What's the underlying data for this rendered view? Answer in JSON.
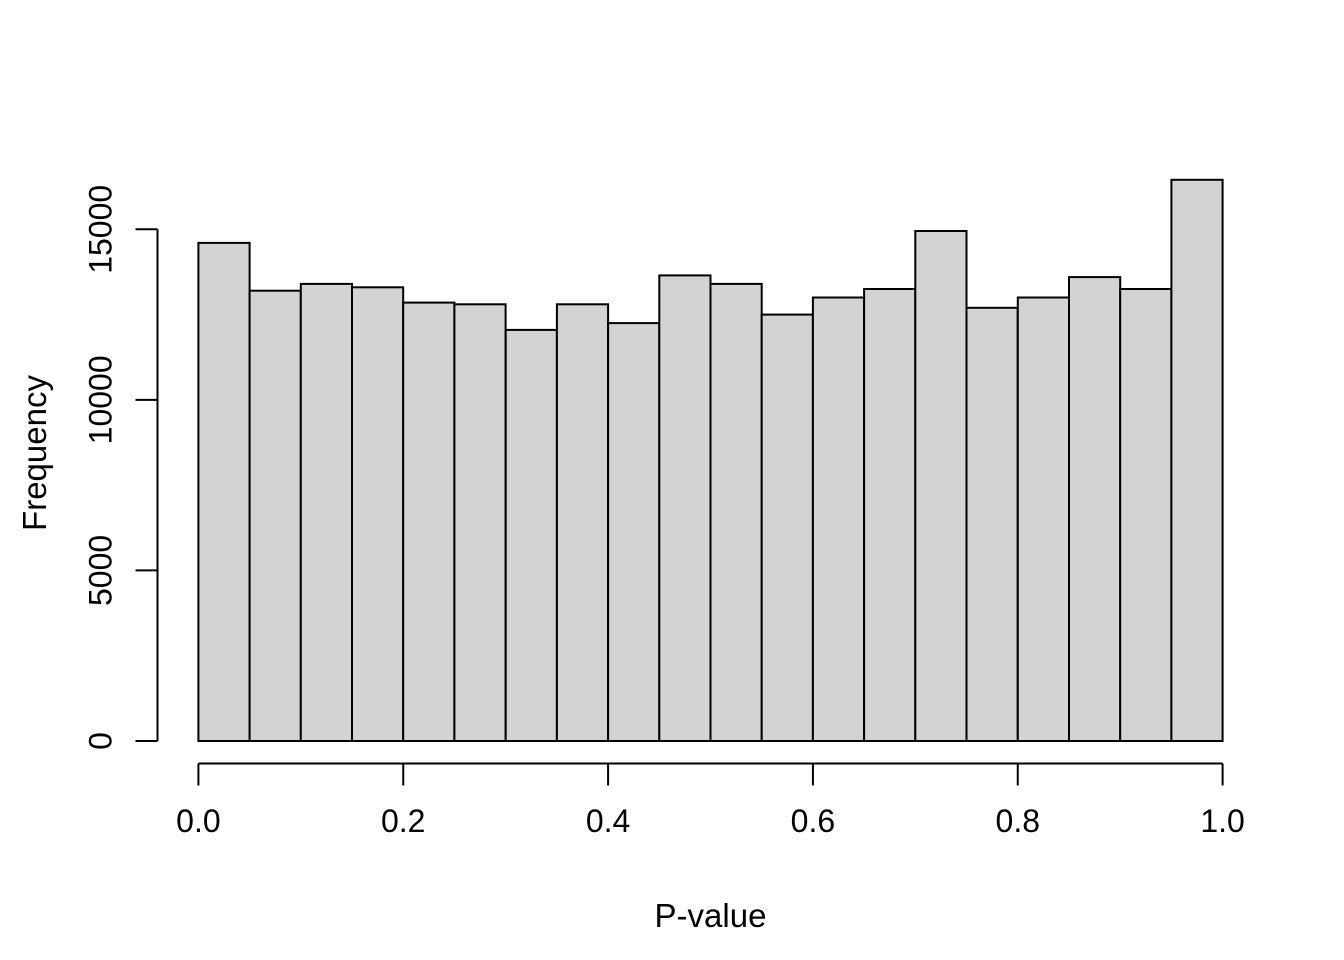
{
  "figure": {
    "background_color": "#ffffff",
    "bar_fill_color": "#d3d3d3",
    "bar_stroke_color": "#000000",
    "axis_color": "#000000",
    "text_color": "#000000"
  },
  "chart_data": {
    "type": "bar",
    "subtype": "histogram",
    "title": "",
    "xlabel": "P-value",
    "ylabel": "Frequency",
    "bins": {
      "start": 0.0,
      "end": 1.0,
      "width": 0.05,
      "count": 20
    },
    "bin_edges": [
      0.0,
      0.05,
      0.1,
      0.15,
      0.2,
      0.25,
      0.3,
      0.35,
      0.4,
      0.45,
      0.5,
      0.55,
      0.6,
      0.65,
      0.7,
      0.75,
      0.8,
      0.85,
      0.9,
      0.95,
      1.0
    ],
    "values": [
      14600,
      13200,
      13400,
      13300,
      12850,
      12800,
      12050,
      12800,
      12250,
      13650,
      13400,
      12500,
      13000,
      13250,
      14950,
      12700,
      13000,
      13600,
      13250,
      16450
    ],
    "x_ticks": [
      0.0,
      0.2,
      0.4,
      0.6,
      0.8,
      1.0
    ],
    "x_tick_labels": [
      "0.0",
      "0.2",
      "0.4",
      "0.6",
      "0.8",
      "1.0"
    ],
    "y_ticks": [
      0,
      5000,
      10000,
      15000
    ],
    "y_tick_labels": [
      "0",
      "5000",
      "10000",
      "15000"
    ],
    "xlim": [
      0.0,
      1.0
    ],
    "ylim": [
      0,
      15000
    ],
    "grid": false,
    "legend": null
  }
}
